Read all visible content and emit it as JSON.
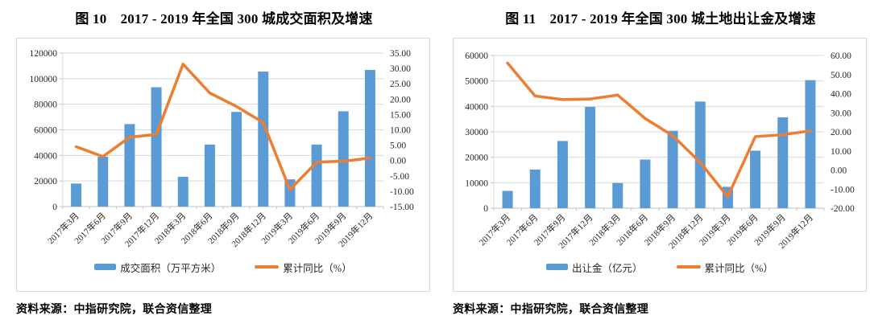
{
  "colors": {
    "bar": "#5B9BD5",
    "line": "#ED7D31",
    "grid": "#D9D9D9",
    "axis": "#BFBFBF",
    "text": "#262626",
    "border": "#D9D9D9"
  },
  "chart_data": [
    {
      "type": "combo_bar_line",
      "title": "图 10　2017 - 2019 年全国 300 城成交面积及增速",
      "source": "资料来源：中指研究院，联合资信整理",
      "categories": [
        "2017年3月",
        "2017年6月",
        "2017年9月",
        "2017年12月",
        "2018年3月",
        "2018年6月",
        "2018年9月",
        "2018年12月",
        "2019年3月",
        "2019年6月",
        "2019年9月",
        "2019年12月"
      ],
      "series": [
        {
          "name": "成交面积（万平方米）",
          "chart": "bar",
          "axis": "left",
          "values": [
            18000,
            39000,
            64500,
            93300,
            23300,
            48500,
            74000,
            105500,
            21300,
            48500,
            74500,
            106800
          ]
        },
        {
          "name": "累计同比（%）",
          "chart": "line",
          "axis": "right",
          "values": [
            4.5,
            1.3,
            7.6,
            8.5,
            31.4,
            22.0,
            17.6,
            12.4,
            -9.5,
            -0.5,
            -0.2,
            0.8
          ]
        }
      ],
      "left_axis": {
        "min": 0,
        "max": 120000,
        "ticks": [
          "120000",
          "100000",
          "80000",
          "60000",
          "40000",
          "20000",
          "0"
        ]
      },
      "right_axis": {
        "min": -15,
        "max": 35,
        "ticks": [
          "35.00",
          "30.00",
          "25.00",
          "20.00",
          "15.00",
          "10.00",
          "5.00",
          "0.00",
          "-5.00",
          "-10.00",
          "-15.00"
        ]
      },
      "grid": true,
      "legend_position": "bottom"
    },
    {
      "type": "combo_bar_line",
      "title": "图 11　2017 - 2019 年全国 300 城土地出让金及增速",
      "source": "资料来源：中指研究院，联合资信整理",
      "categories": [
        "2017年3月",
        "2017年6月",
        "2017年9月",
        "2017年12月",
        "2018年3月",
        "2018年6月",
        "2018年9月",
        "2018年12月",
        "2019年3月",
        "2019年6月",
        "2019年9月",
        "2019年12月"
      ],
      "series": [
        {
          "name": "出让金（亿元）",
          "chart": "bar",
          "axis": "left",
          "values": [
            6800,
            15200,
            26400,
            39800,
            9900,
            19100,
            30400,
            41900,
            8400,
            22600,
            35700,
            50300
          ]
        },
        {
          "name": "累计同比（%）",
          "chart": "line",
          "axis": "right",
          "values": [
            56.0,
            38.8,
            36.9,
            37.2,
            39.3,
            27.0,
            18.0,
            4.0,
            -14.0,
            17.5,
            18.5,
            20.5
          ]
        }
      ],
      "left_axis": {
        "min": 0,
        "max": 60000,
        "ticks": [
          "60000",
          "50000",
          "40000",
          "30000",
          "20000",
          "10000",
          "0"
        ]
      },
      "right_axis": {
        "min": -20,
        "max": 60,
        "ticks": [
          "60.00",
          "50.00",
          "40.00",
          "30.00",
          "20.00",
          "10.00",
          "0.00",
          "-10.00",
          "-20.00"
        ]
      },
      "grid": true,
      "legend_position": "bottom"
    }
  ]
}
